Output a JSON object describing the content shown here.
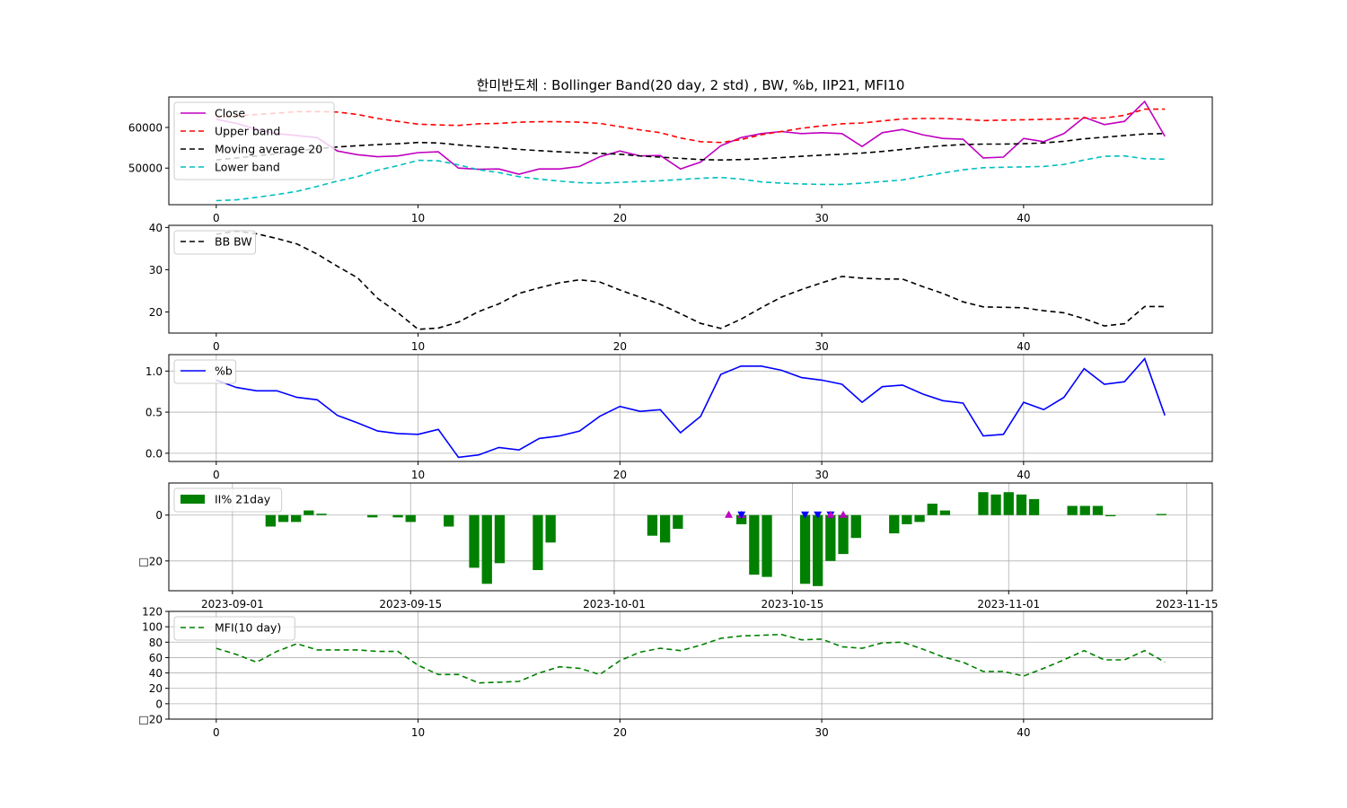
{
  "title": "한미반도체 : Bollinger Band(20 day, 2 std) , BW, %b, IIP21, MFI10",
  "chart_data": [
    {
      "id": "bollinger",
      "type": "line",
      "x": [
        0,
        1,
        2,
        3,
        4,
        5,
        6,
        7,
        8,
        9,
        10,
        11,
        12,
        13,
        14,
        15,
        16,
        17,
        18,
        19,
        20,
        21,
        22,
        23,
        24,
        25,
        26,
        27,
        28,
        29,
        30,
        31,
        32,
        33,
        34,
        35,
        36,
        37,
        38,
        39,
        40,
        41,
        42,
        43,
        44,
        45,
        46,
        47
      ],
      "xlim": [
        -2.35,
        49.35
      ],
      "ylim": [
        41000,
        67500
      ],
      "yticks": [
        50000,
        60000
      ],
      "xticks": [
        0,
        10,
        20,
        30,
        40
      ],
      "legend_position": "upper-left",
      "series": [
        {
          "name": "Close",
          "color": "#bf00bf",
          "dash": "solid",
          "values": [
            62000,
            61000,
            59500,
            58500,
            58000,
            57500,
            54200,
            53300,
            52800,
            53000,
            53800,
            54000,
            50000,
            49700,
            49800,
            48500,
            49800,
            49800,
            50400,
            52800,
            54200,
            53000,
            53100,
            49800,
            51500,
            55500,
            57500,
            58500,
            59000,
            58500,
            58700,
            58500,
            55300,
            58700,
            59500,
            58200,
            57300,
            57100,
            52500,
            52700,
            57300,
            56500,
            58500,
            62500,
            60700,
            61500,
            66400,
            57800
          ]
        },
        {
          "name": "Upper band",
          "color": "#ff0000",
          "dash": "dashed",
          "values": [
            62500,
            62800,
            63200,
            63500,
            63900,
            63900,
            63800,
            63200,
            62200,
            61500,
            60800,
            60600,
            60500,
            60900,
            61000,
            61300,
            61400,
            61400,
            61300,
            61000,
            60200,
            59400,
            58700,
            57400,
            56500,
            56300,
            57000,
            58200,
            59000,
            59800,
            60400,
            60900,
            61100,
            61600,
            62100,
            62200,
            62200,
            62000,
            61700,
            61800,
            61900,
            62000,
            62100,
            62300,
            62300,
            63000,
            64500,
            64500
          ]
        },
        {
          "name": "Moving average 20",
          "color": "#000000",
          "dash": "dashed",
          "values": [
            52000,
            52500,
            53000,
            53500,
            54200,
            54800,
            55200,
            55500,
            55800,
            56000,
            56300,
            56200,
            55700,
            55300,
            55000,
            54600,
            54300,
            54000,
            53800,
            53600,
            53400,
            53000,
            52700,
            52400,
            52100,
            52000,
            52100,
            52300,
            52600,
            52900,
            53200,
            53400,
            53700,
            54100,
            54600,
            55100,
            55500,
            55800,
            55900,
            55900,
            56000,
            56200,
            56600,
            57200,
            57600,
            58000,
            58400,
            58500
          ]
        },
        {
          "name": "Lower band",
          "color": "#00bfbf",
          "dash": "dashed",
          "values": [
            42000,
            42200,
            42800,
            43500,
            44300,
            45500,
            46800,
            47900,
            49500,
            50600,
            51900,
            51800,
            50800,
            49600,
            48900,
            47900,
            47300,
            46800,
            46400,
            46300,
            46500,
            46700,
            46900,
            47200,
            47500,
            47700,
            47300,
            46600,
            46300,
            46100,
            46000,
            46000,
            46300,
            46700,
            47100,
            48000,
            48800,
            49600,
            50100,
            50200,
            50300,
            50400,
            50900,
            52000,
            52900,
            53000,
            52300,
            52200
          ]
        }
      ]
    },
    {
      "id": "bandwidth",
      "type": "line",
      "x": [
        0,
        1,
        2,
        3,
        4,
        5,
        6,
        7,
        8,
        9,
        10,
        11,
        12,
        13,
        14,
        15,
        16,
        17,
        18,
        19,
        20,
        21,
        22,
        23,
        24,
        25,
        26,
        27,
        28,
        29,
        30,
        31,
        32,
        33,
        34,
        35,
        36,
        37,
        38,
        39,
        40,
        41,
        42,
        43,
        44,
        45,
        46,
        47
      ],
      "xlim": [
        -2.35,
        49.35
      ],
      "ylim": [
        15,
        40.5
      ],
      "yticks": [
        20,
        30,
        40
      ],
      "xticks": [
        0,
        10,
        20,
        30,
        40
      ],
      "legend_position": "upper-left",
      "series": [
        {
          "name": "BB BW",
          "color": "#000000",
          "dash": "dashed",
          "values": [
            38.4,
            39.1,
            38.5,
            37.4,
            36.1,
            33.7,
            30.8,
            28.1,
            23.2,
            19.8,
            15.9,
            16.2,
            17.6,
            20.1,
            21.9,
            24.4,
            25.7,
            26.9,
            27.6,
            27.1,
            25.2,
            23.5,
            21.8,
            19.6,
            17.3,
            16.1,
            18.3,
            21.0,
            23.5,
            25.3,
            26.9,
            28.4,
            28.0,
            27.8,
            27.8,
            26.0,
            24.4,
            22.4,
            21.2,
            21.1,
            21.0,
            20.3,
            19.8,
            18.4,
            16.7,
            17.2,
            21.3,
            21.3
          ]
        }
      ]
    },
    {
      "id": "percent_b",
      "type": "line",
      "x": [
        0,
        1,
        2,
        3,
        4,
        5,
        6,
        7,
        8,
        9,
        10,
        11,
        12,
        13,
        14,
        15,
        16,
        17,
        18,
        19,
        20,
        21,
        22,
        23,
        24,
        25,
        26,
        27,
        28,
        29,
        30,
        31,
        32,
        33,
        34,
        35,
        36,
        37,
        38,
        39,
        40,
        41,
        42,
        43,
        44,
        45,
        46,
        47
      ],
      "xlim": [
        -2.35,
        49.35
      ],
      "ylim": [
        -0.1,
        1.2
      ],
      "yticks": [
        0.0,
        0.5,
        1.0
      ],
      "ytick_labels": [
        "0.0",
        "0.5",
        "1.0"
      ],
      "xticks": [
        0,
        10,
        20,
        30,
        40
      ],
      "grid": true,
      "legend_position": "upper-left",
      "series": [
        {
          "name": "%b",
          "color": "#0000ff",
          "dash": "solid",
          "values": [
            0.89,
            0.8,
            0.76,
            0.76,
            0.68,
            0.65,
            0.46,
            0.37,
            0.27,
            0.24,
            0.23,
            0.29,
            -0.05,
            -0.02,
            0.07,
            0.04,
            0.18,
            0.21,
            0.27,
            0.45,
            0.57,
            0.51,
            0.53,
            0.25,
            0.45,
            0.96,
            1.06,
            1.06,
            1.01,
            0.92,
            0.89,
            0.84,
            0.62,
            0.81,
            0.83,
            0.72,
            0.64,
            0.61,
            0.21,
            0.23,
            0.62,
            0.53,
            0.68,
            1.03,
            0.84,
            0.87,
            1.15,
            0.46
          ]
        }
      ]
    },
    {
      "id": "iip21",
      "type": "bar",
      "dates": [
        "2023-08-29",
        "2023-08-30",
        "2023-08-31",
        "2023-09-01",
        "2023-09-04",
        "2023-09-05",
        "2023-09-06",
        "2023-09-07",
        "2023-09-08",
        "2023-09-11",
        "2023-09-12",
        "2023-09-13",
        "2023-09-14",
        "2023-09-15",
        "2023-09-18",
        "2023-09-19",
        "2023-09-20",
        "2023-09-21",
        "2023-09-22",
        "2023-09-25",
        "2023-09-26",
        "2023-09-27",
        "2023-10-04",
        "2023-10-05",
        "2023-10-06",
        "2023-10-10",
        "2023-10-11",
        "2023-10-12",
        "2023-10-13",
        "2023-10-16",
        "2023-10-17",
        "2023-10-18",
        "2023-10-19",
        "2023-10-20",
        "2023-10-23",
        "2023-10-24",
        "2023-10-25",
        "2023-10-26",
        "2023-10-27",
        "2023-10-30",
        "2023-10-31",
        "2023-11-01",
        "2023-11-02",
        "2023-11-03",
        "2023-11-06",
        "2023-11-07",
        "2023-11-08",
        "2023-11-09",
        "2023-11-10",
        "2023-11-13"
      ],
      "values": [
        0,
        0,
        0,
        0,
        -5,
        -3,
        -3,
        2,
        0.6,
        0,
        -1,
        0,
        -1,
        -3,
        -5,
        0,
        -23,
        -30,
        -21,
        -24,
        -12,
        0,
        -9,
        -12,
        -6,
        0,
        -4,
        -26,
        -27,
        -30,
        -31,
        -20,
        -17,
        -10,
        -8,
        -4,
        -3,
        5,
        2,
        10,
        9,
        10,
        9,
        7,
        4,
        4,
        4,
        -0.5,
        0,
        0.5
      ],
      "dates_used": [
        "2023-08-29",
        "2023-08-30",
        "2023-08-31",
        "2023-09-01",
        "2023-09-04",
        "2023-09-05",
        "2023-09-06",
        "2023-09-07",
        "2023-09-08",
        "2023-09-11",
        "2023-09-12",
        "2023-09-13",
        "2023-09-14",
        "2023-09-15",
        "2023-09-18",
        "2023-09-19",
        "2023-09-20",
        "2023-09-21",
        "2023-09-22",
        "2023-09-25",
        "2023-09-26",
        "2023-09-27",
        "2023-10-04",
        "2023-10-05",
        "2023-10-06",
        "2023-10-10",
        "2023-10-11",
        "2023-10-12",
        "2023-10-13",
        "2023-10-16",
        "2023-10-17",
        "2023-10-18",
        "2023-10-19",
        "2023-10-20",
        "2023-10-23",
        "2023-10-24",
        "2023-10-25",
        "2023-10-26",
        "2023-10-27",
        "2023-10-30",
        "2023-10-31",
        "2023-11-01",
        "2023-11-02",
        "2023-11-03",
        "2023-11-06",
        "2023-11-07",
        "2023-11-08",
        "2023-11-09",
        "2023-11-10",
        "2023-11-13"
      ],
      "xlim": [
        "2023-08-27",
        "2023-11-17"
      ],
      "ylim": [
        -33,
        14
      ],
      "yticks": [
        -20,
        0
      ],
      "ytick_labels": [
        "□20",
        "0"
      ],
      "xticks": [
        "2023-09-01",
        "2023-09-15",
        "2023-10-01",
        "2023-10-15",
        "2023-11-01",
        "2023-11-15"
      ],
      "grid": true,
      "color": "#008000",
      "legend_position": "upper-left",
      "series_name": "II% 21day",
      "markers": [
        {
          "date": "2023-10-10",
          "type": "buy",
          "color": "#bf00bf"
        },
        {
          "date": "2023-10-11",
          "type": "buy",
          "color": "#bf00bf"
        },
        {
          "date": "2023-10-11",
          "type": "sell",
          "color": "#0000ff"
        },
        {
          "date": "2023-10-16",
          "type": "sell",
          "color": "#0000ff"
        },
        {
          "date": "2023-10-17",
          "type": "sell",
          "color": "#0000ff"
        },
        {
          "date": "2023-10-18",
          "type": "sell",
          "color": "#0000ff"
        },
        {
          "date": "2023-10-18",
          "type": "buy",
          "color": "#bf00bf"
        },
        {
          "date": "2023-10-19",
          "type": "buy",
          "color": "#bf00bf"
        }
      ]
    },
    {
      "id": "mfi10",
      "type": "line",
      "x": [
        0,
        1,
        2,
        3,
        4,
        5,
        6,
        7,
        8,
        9,
        10,
        11,
        12,
        13,
        14,
        15,
        16,
        17,
        18,
        19,
        20,
        21,
        22,
        23,
        24,
        25,
        26,
        27,
        28,
        29,
        30,
        31,
        32,
        33,
        34,
        35,
        36,
        37,
        38,
        39,
        40,
        41,
        42,
        43,
        44,
        45,
        46,
        47
      ],
      "xlim": [
        -2.35,
        49.35
      ],
      "ylim": [
        -20,
        120
      ],
      "yticks": [
        -20,
        0,
        20,
        40,
        60,
        80,
        100,
        120
      ],
      "ytick_labels": [
        "□20",
        "0",
        "20",
        "40",
        "60",
        "80",
        "100",
        "120"
      ],
      "xticks": [
        0,
        10,
        20,
        30,
        40
      ],
      "grid": true,
      "legend_position": "upper-left",
      "series": [
        {
          "name": "MFI(10 day)",
          "color": "#008000",
          "dash": "dashed",
          "values": [
            72,
            64,
            54,
            68,
            78,
            70,
            70,
            70,
            68,
            68,
            50,
            38,
            38,
            27,
            28,
            29,
            40,
            48,
            46,
            38,
            56,
            67,
            72,
            69,
            76,
            85,
            88,
            89,
            90,
            83,
            84,
            74,
            72,
            79,
            80,
            71,
            61,
            54,
            42,
            42,
            36,
            46,
            57,
            69,
            57,
            57,
            69,
            54
          ]
        }
      ]
    }
  ]
}
